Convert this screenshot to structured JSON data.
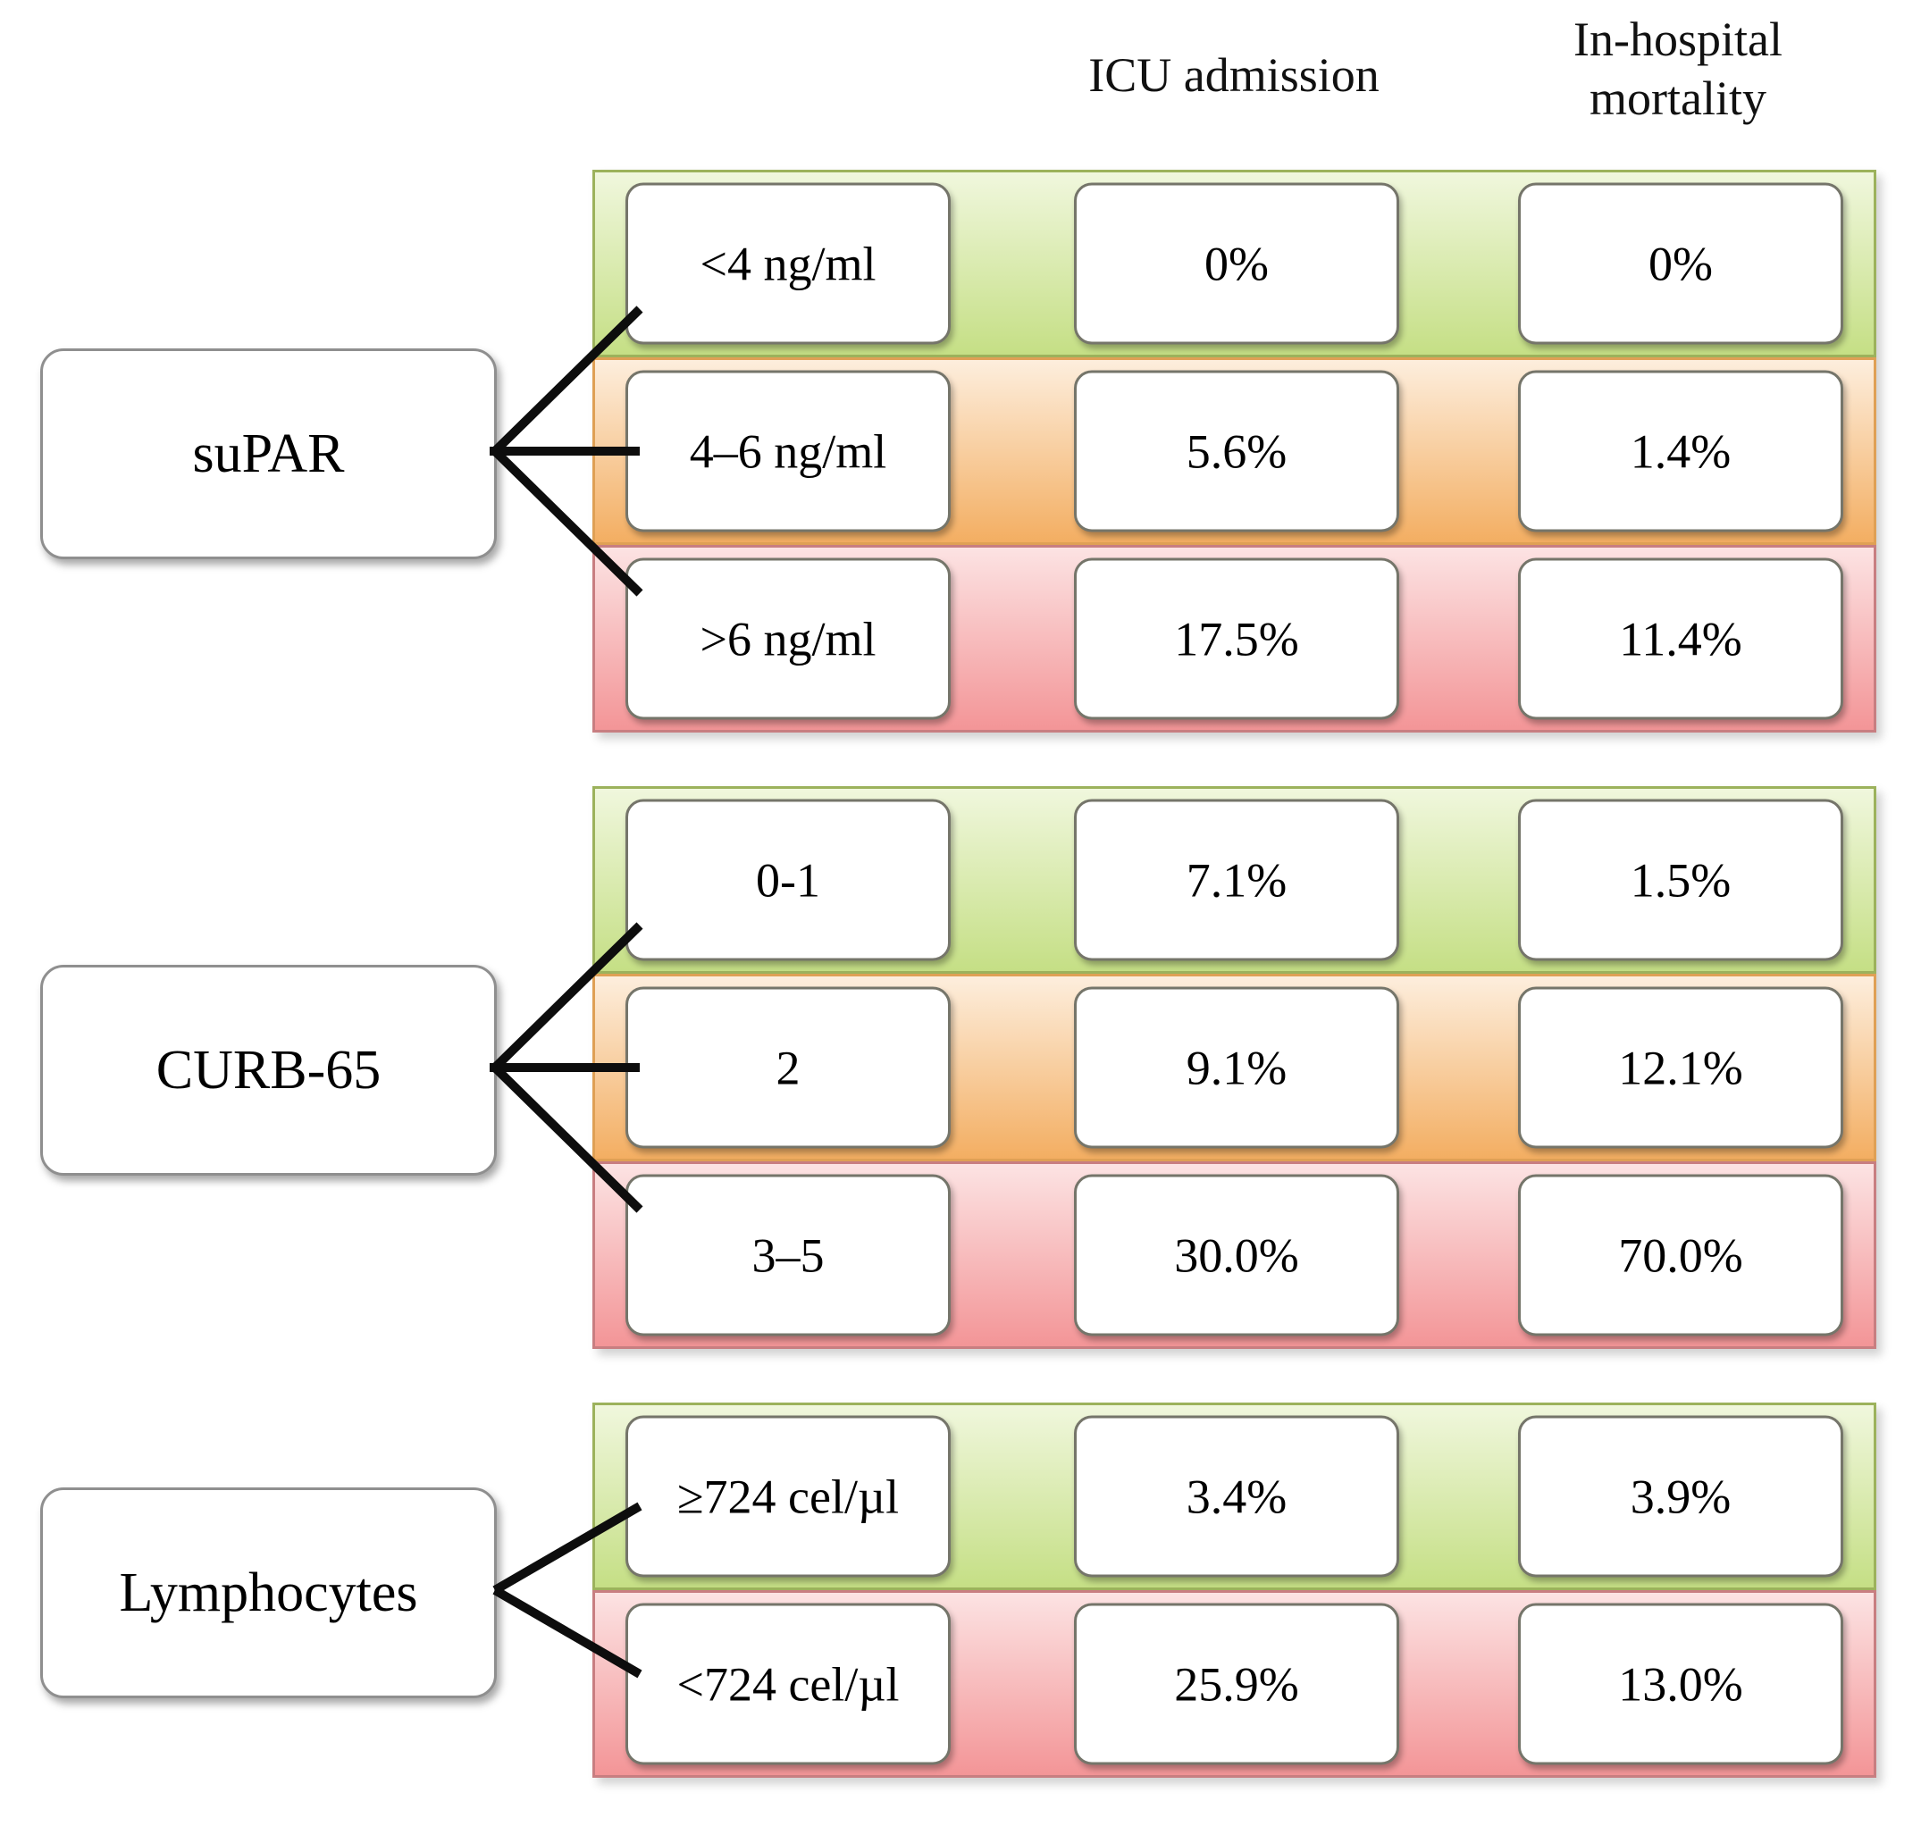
{
  "headers": {
    "icu": "ICU admission",
    "mortality": "In-hospital mortality"
  },
  "groups": [
    {
      "label": "suPAR",
      "rows": [
        {
          "level": "low",
          "category": "<4 ng/ml",
          "icu": "0%",
          "mortality": "0%"
        },
        {
          "level": "medium",
          "category": "4–6 ng/ml",
          "icu": "5.6%",
          "mortality": "1.4%"
        },
        {
          "level": "high",
          "category": ">6 ng/ml",
          "icu": "17.5%",
          "mortality": "11.4%"
        }
      ]
    },
    {
      "label": "CURB-65",
      "rows": [
        {
          "level": "low",
          "category": "0-1",
          "icu": "7.1%",
          "mortality": "1.5%"
        },
        {
          "level": "medium",
          "category": "2",
          "icu": "9.1%",
          "mortality": "12.1%"
        },
        {
          "level": "high",
          "category": "3–5",
          "icu": "30.0%",
          "mortality": "70.0%"
        }
      ]
    },
    {
      "label": "Lymphocytes",
      "rows": [
        {
          "level": "low",
          "category": "≥724 cel/µl",
          "icu": "3.4%",
          "mortality": "3.9%"
        },
        {
          "level": "high",
          "category": "<724 cel/µl",
          "icu": "25.9%",
          "mortality": "13.0%"
        }
      ]
    }
  ],
  "risk_colors": {
    "low": {
      "top": "#f0f7dd",
      "bottom": "#c5df85",
      "border": "#9cb25c"
    },
    "medium": {
      "top": "#fdeedd",
      "bottom": "#f3ae62",
      "border": "#dfa055"
    },
    "high": {
      "top": "#fce3e3",
      "bottom": "#f39597",
      "border": "#c87e81"
    }
  },
  "line_color": "#0d0d0d"
}
